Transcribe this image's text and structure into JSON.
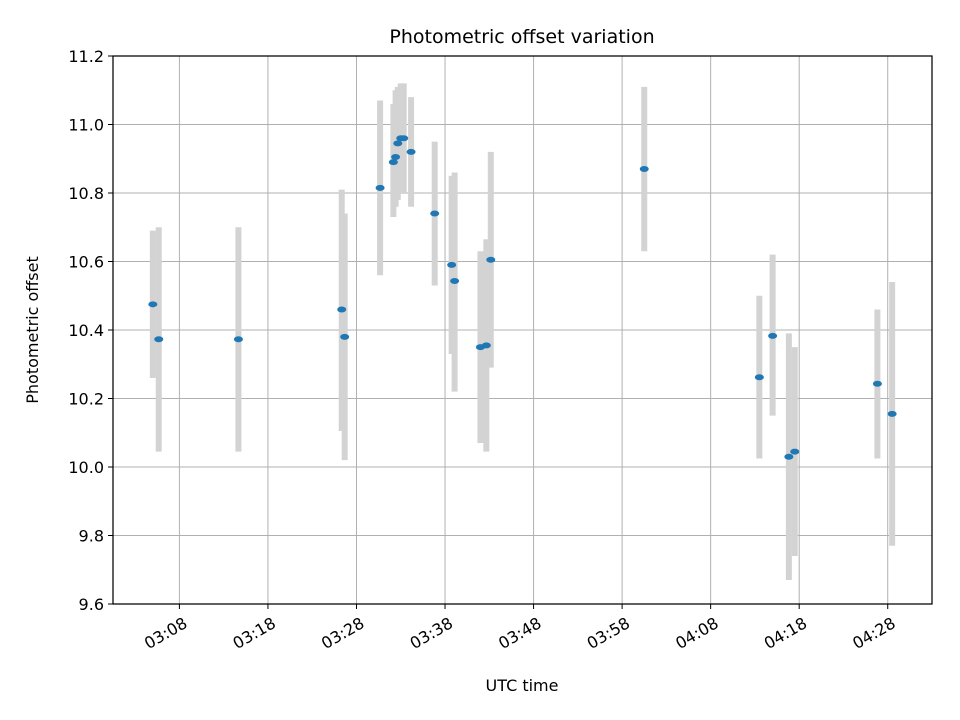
{
  "chart_data": {
    "type": "scatter",
    "title": "Photometric offset variation",
    "xlabel": "UTC time",
    "ylabel": "Photometric offset",
    "x_axis_format": "time HH:MM",
    "xlim": [
      "03:00:30",
      "04:33:00"
    ],
    "ylim": [
      9.6,
      11.2
    ],
    "x_ticks": [
      "03:08",
      "03:18",
      "03:28",
      "03:38",
      "03:48",
      "03:58",
      "04:08",
      "04:18",
      "04:28"
    ],
    "y_ticks": [
      "9.6",
      "9.8",
      "10.0",
      "10.2",
      "10.4",
      "10.6",
      "10.8",
      "11.0",
      "11.2"
    ],
    "grid": true,
    "error_bars": true,
    "colors": {
      "points": "#1f77b4",
      "error_bars": "#d3d3d3",
      "grid": "#b0b0b0"
    },
    "points": [
      {
        "t": "03:05:00",
        "y": 10.475,
        "err_low": 10.26,
        "err_high": 10.69
      },
      {
        "t": "03:05:40",
        "y": 10.373,
        "err_low": 10.045,
        "err_high": 10.7
      },
      {
        "t": "03:14:40",
        "y": 10.373,
        "err_low": 10.045,
        "err_high": 10.7
      },
      {
        "t": "03:26:20",
        "y": 10.46,
        "err_low": 10.105,
        "err_high": 10.81
      },
      {
        "t": "03:26:40",
        "y": 10.38,
        "err_low": 10.02,
        "err_high": 10.74
      },
      {
        "t": "03:30:40",
        "y": 10.815,
        "err_low": 10.56,
        "err_high": 11.07
      },
      {
        "t": "03:32:10",
        "y": 10.89,
        "err_low": 10.73,
        "err_high": 11.06
      },
      {
        "t": "03:32:25",
        "y": 10.905,
        "err_low": 10.76,
        "err_high": 11.1
      },
      {
        "t": "03:32:40",
        "y": 10.945,
        "err_low": 10.78,
        "err_high": 11.11
      },
      {
        "t": "03:33:00",
        "y": 10.96,
        "err_low": 10.8,
        "err_high": 11.12
      },
      {
        "t": "03:33:20",
        "y": 10.96,
        "err_low": 10.8,
        "err_high": 11.12
      },
      {
        "t": "03:34:10",
        "y": 10.92,
        "err_low": 10.76,
        "err_high": 11.08
      },
      {
        "t": "03:36:50",
        "y": 10.74,
        "err_low": 10.53,
        "err_high": 10.95
      },
      {
        "t": "03:38:45",
        "y": 10.59,
        "err_low": 10.33,
        "err_high": 10.85
      },
      {
        "t": "03:39:05",
        "y": 10.543,
        "err_low": 10.22,
        "err_high": 10.86
      },
      {
        "t": "03:42:00",
        "y": 10.35,
        "err_low": 10.07,
        "err_high": 10.63
      },
      {
        "t": "03:42:40",
        "y": 10.355,
        "err_low": 10.045,
        "err_high": 10.665
      },
      {
        "t": "03:43:10",
        "y": 10.605,
        "err_low": 10.29,
        "err_high": 10.92
      },
      {
        "t": "04:00:30",
        "y": 10.87,
        "err_low": 10.63,
        "err_high": 11.11
      },
      {
        "t": "04:13:30",
        "y": 10.262,
        "err_low": 10.025,
        "err_high": 10.5
      },
      {
        "t": "04:15:00",
        "y": 10.383,
        "err_low": 10.15,
        "err_high": 10.62
      },
      {
        "t": "04:16:50",
        "y": 10.03,
        "err_low": 9.67,
        "err_high": 10.39
      },
      {
        "t": "04:17:30",
        "y": 10.045,
        "err_low": 9.74,
        "err_high": 10.35
      },
      {
        "t": "04:26:50",
        "y": 10.243,
        "err_low": 10.025,
        "err_high": 10.46
      },
      {
        "t": "04:28:30",
        "y": 10.155,
        "err_low": 9.77,
        "err_high": 10.54
      }
    ]
  }
}
